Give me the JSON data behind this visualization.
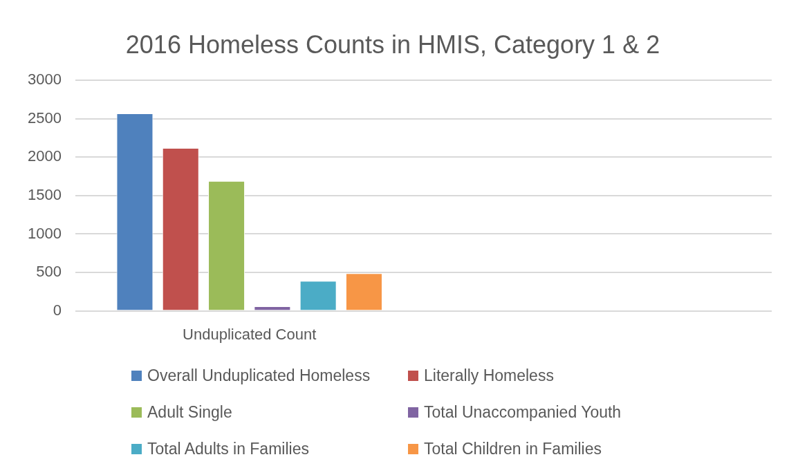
{
  "chart_data": {
    "type": "bar",
    "title": "2016 Homeless Counts in HMIS, Category 1 & 2",
    "categories": [
      "Unduplicated Count",
      null
    ],
    "series": [
      {
        "name": "Overall Unduplicated Homeless",
        "color": "#4f81bd",
        "values": [
          2570,
          null
        ]
      },
      {
        "name": "Literally Homeless",
        "color": "#c0504d",
        "values": [
          2120,
          null
        ]
      },
      {
        "name": "Adult Single",
        "color": "#9bbb59",
        "values": [
          1690,
          null
        ]
      },
      {
        "name": "Total Unaccompanied Youth",
        "color": "#8064a2",
        "values": [
          60,
          null
        ]
      },
      {
        "name": "Total Adults in Families",
        "color": "#4bacc6",
        "values": [
          390,
          null
        ]
      },
      {
        "name": "Total Children in Families",
        "color": "#f79646",
        "values": [
          490,
          null
        ]
      }
    ],
    "ylim": [
      0,
      3000
    ],
    "yticks": [
      0,
      500,
      1000,
      1500,
      2000,
      2500,
      3000
    ],
    "grid": "y",
    "legend": "bottom"
  }
}
